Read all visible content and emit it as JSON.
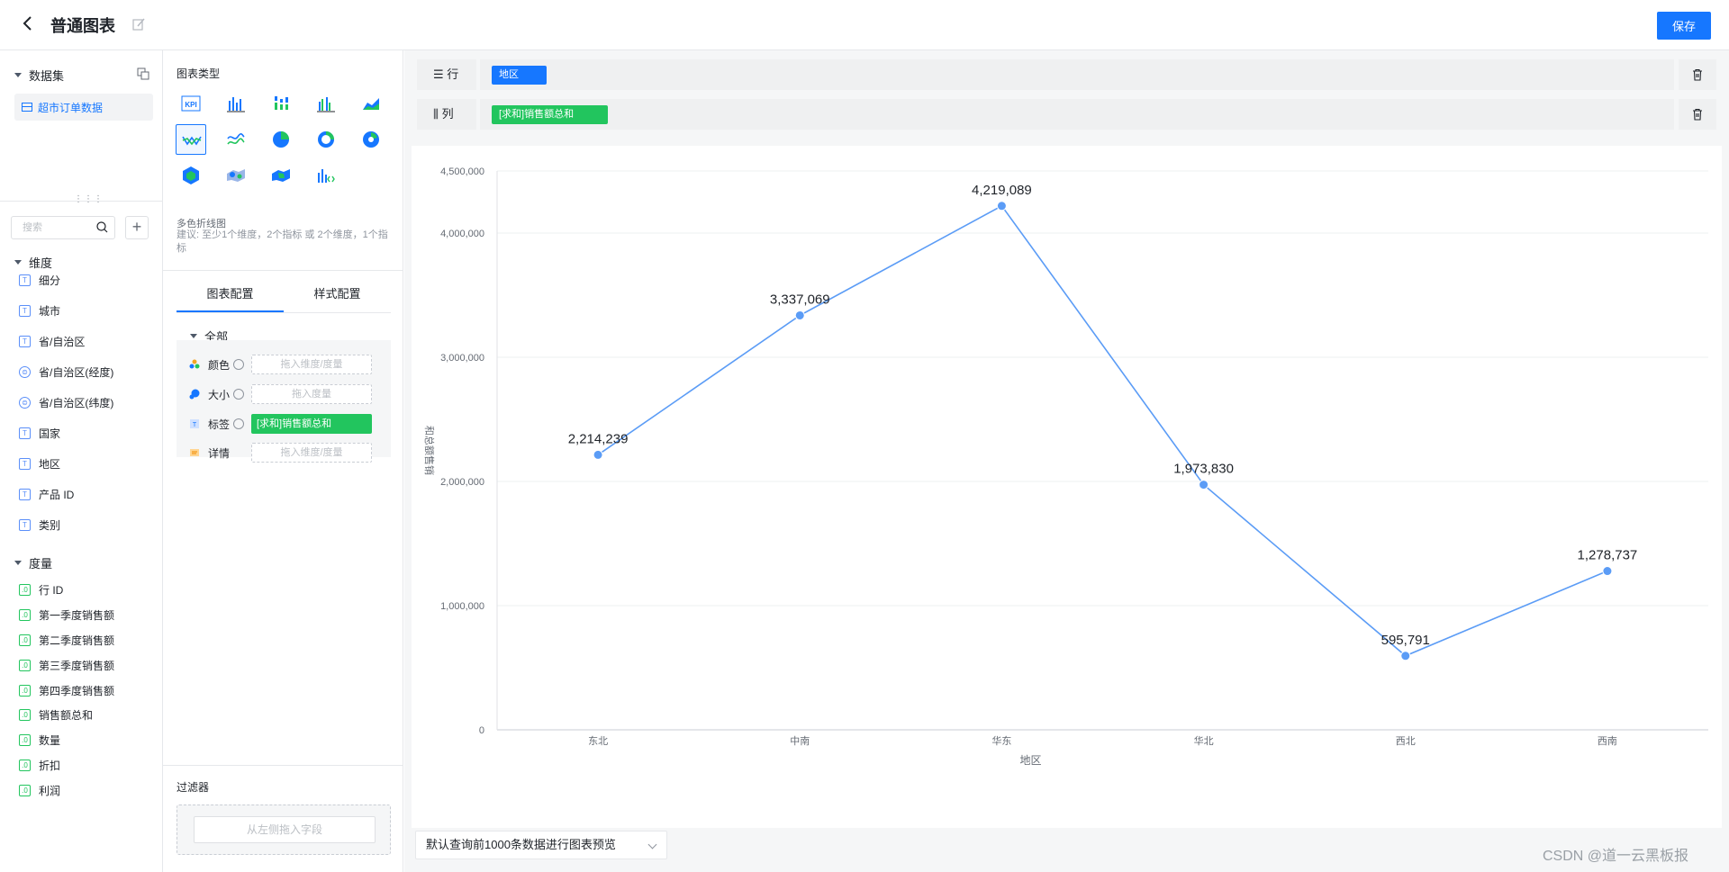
{
  "header": {
    "title": "普通图表",
    "save_label": "保存"
  },
  "dataset": {
    "section_label": "数据集",
    "selected": "超市订单数据"
  },
  "search": {
    "placeholder": "搜索"
  },
  "dimensions": {
    "label": "维度",
    "items": [
      {
        "name": "细分",
        "icon": "T"
      },
      {
        "name": "城市",
        "icon": "T"
      },
      {
        "name": "省/自治区",
        "icon": "T"
      },
      {
        "name": "省/自治区(经度)",
        "icon": "geo"
      },
      {
        "name": "省/自治区(纬度)",
        "icon": "geo"
      },
      {
        "name": "国家",
        "icon": "T"
      },
      {
        "name": "地区",
        "icon": "T"
      },
      {
        "name": "产品 ID",
        "icon": "T"
      },
      {
        "name": "类别",
        "icon": "T"
      }
    ]
  },
  "measures": {
    "label": "度量",
    "items": [
      "行 ID",
      "第一季度销售额",
      "第二季度销售额",
      "第三季度销售额",
      "第四季度销售额",
      "销售额总和",
      "数量",
      "折扣",
      "利润"
    ]
  },
  "chart_types": {
    "title": "图表类型",
    "selected_name": "多色折线图",
    "hint": "建议: 至少1个维度，2个指标 或 2个维度，1个指标"
  },
  "config_tabs": {
    "chart": "图表配置",
    "style": "样式配置"
  },
  "config": {
    "group_label": "全部",
    "color": {
      "label": "颜色",
      "placeholder": "拖入维度/度量"
    },
    "size": {
      "label": "大小",
      "placeholder": "拖入度量"
    },
    "tag": {
      "label": "标签",
      "value": "[求和]销售额总和"
    },
    "detail": {
      "label": "详情",
      "placeholder": "拖入维度/度量"
    }
  },
  "filter": {
    "title": "过滤器",
    "placeholder": "从左侧拖入字段"
  },
  "shelves": {
    "row": {
      "label": "行",
      "chip": "地区"
    },
    "col": {
      "label": "列",
      "chip": "[求和]销售额总和"
    }
  },
  "colors": {
    "primary": "#1677ff",
    "green": "#22c55e",
    "line": "#5b9cf6"
  },
  "chart_data": {
    "type": "line",
    "categories": [
      "东北",
      "中南",
      "华东",
      "华北",
      "西北",
      "西南"
    ],
    "values": [
      2214239,
      3337069,
      4219089,
      1973830,
      595791,
      1278737
    ],
    "value_labels": [
      "2,214,239",
      "3,337,069",
      "4,219,089",
      "1,973,830",
      "595,791",
      "1,278,737"
    ],
    "xlabel": "地区",
    "ylabel": "和总额售销",
    "ylim": [
      0,
      4500000
    ],
    "yticks": [
      "0",
      "1,000,000",
      "2,000,000",
      "3,000,000",
      "4,000,000",
      "4,500,000"
    ],
    "ytick_values": [
      0,
      1000000,
      2000000,
      3000000,
      4000000,
      4500000
    ],
    "grid": true
  },
  "preview": {
    "label": "默认查询前1000条数据进行图表预览"
  },
  "watermark": "CSDN @道一云黑板报"
}
